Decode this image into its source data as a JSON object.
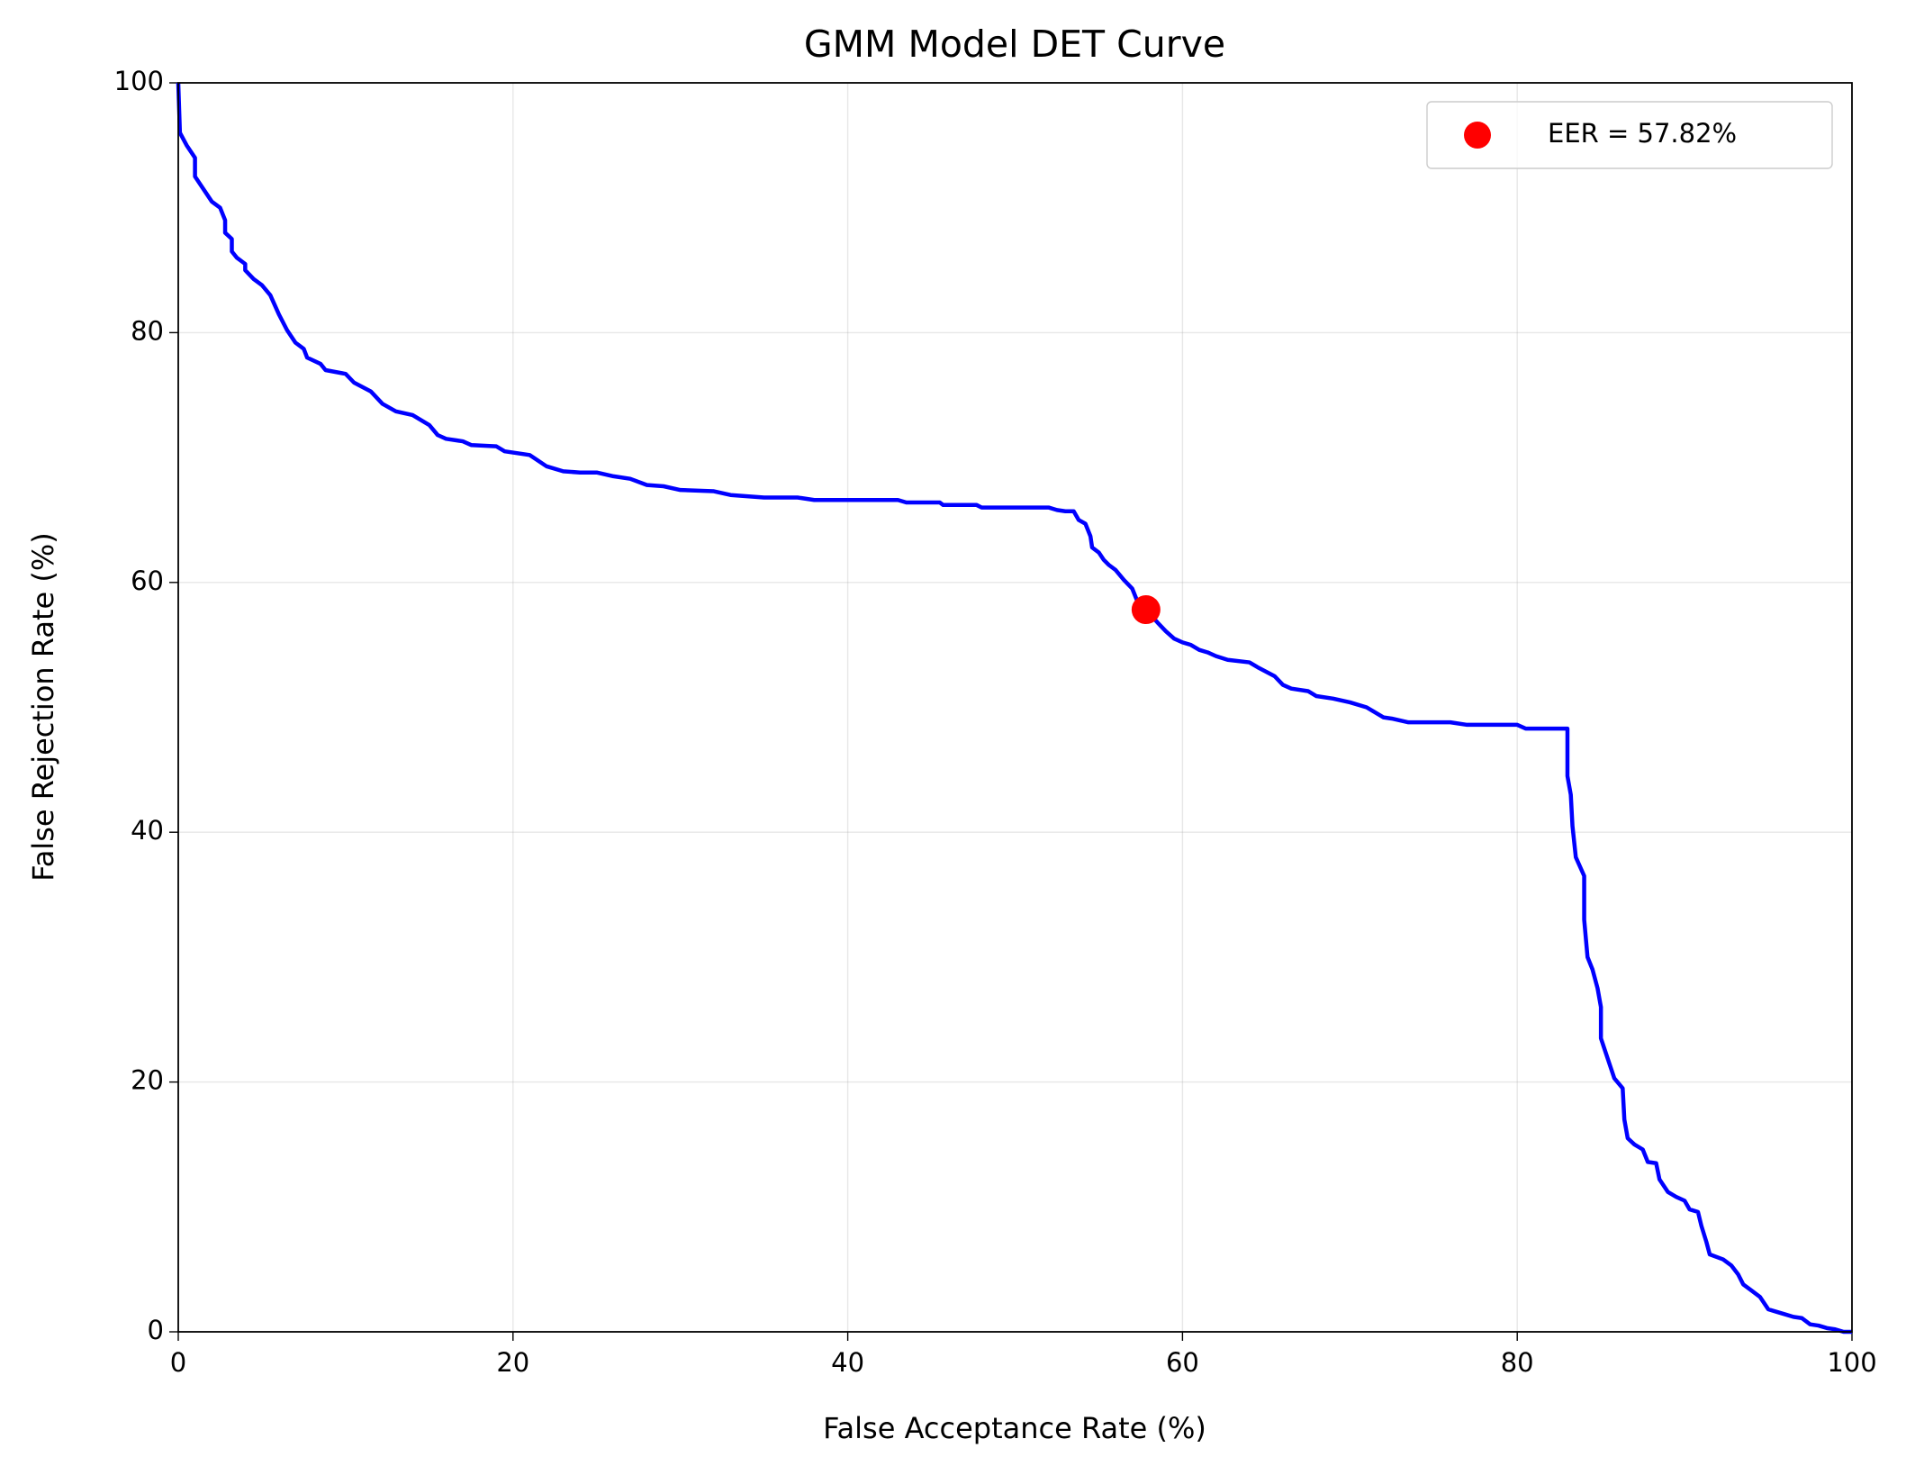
{
  "chart_data": {
    "type": "line",
    "title": "GMM Model DET Curve",
    "x_label": "False Acceptance Rate (%)",
    "y_label": "False Rejection Rate (%)",
    "xlim": [
      0,
      100
    ],
    "ylim": [
      0,
      100
    ],
    "xticks": [
      0,
      20,
      40,
      60,
      80,
      100
    ],
    "yticks": [
      0,
      20,
      40,
      60,
      80,
      100
    ],
    "grid": true,
    "legend_position": "upper right",
    "series": [
      {
        "color": "#0000ff",
        "mode": "line",
        "x": [
          0,
          0.1,
          0.5,
          1,
          1,
          1.5,
          2,
          2.5,
          2.8,
          2.8,
          3.2,
          3.2,
          3.5,
          4,
          4,
          4.5,
          5,
          5.5,
          6,
          6.5,
          7,
          7.5,
          7.7,
          8.5,
          8.8,
          10,
          10.5,
          11.5,
          12.2,
          13,
          14,
          15,
          15.5,
          16,
          17,
          17.5,
          19,
          19.5,
          21,
          22,
          23,
          24,
          25,
          26,
          27,
          28,
          29,
          30,
          32,
          33,
          35,
          37,
          38,
          43,
          43.5,
          45.5,
          45.7,
          47.7,
          48,
          52,
          52.5,
          53,
          53.5,
          53.8,
          54.2,
          54.5,
          54.6,
          55,
          55.3,
          55.6,
          56,
          56.5,
          57,
          57.3,
          57.82,
          58.5,
          59,
          59.5,
          60,
          60.5,
          61,
          61.5,
          62,
          62.7,
          64,
          64.5,
          65.5,
          66,
          66.5,
          67.5,
          68,
          69,
          70,
          71,
          72,
          72.5,
          73.5,
          76,
          77,
          80,
          80.5,
          83,
          83,
          83.2,
          83.3,
          83.5,
          84,
          84,
          84.2,
          84.5,
          84.8,
          85,
          85,
          85.5,
          85.8,
          86.3,
          86.4,
          86.6,
          87,
          87.5,
          87.8,
          88.3,
          88.5,
          89,
          89.5,
          90,
          90.3,
          90.8,
          91,
          91.3,
          91.5,
          92.3,
          92.8,
          93.2,
          93.5,
          94,
          94.5,
          95,
          95.5,
          96,
          96.5,
          97,
          97.5,
          98,
          98.5,
          99,
          99.5,
          100
        ],
        "values": [
          100,
          96,
          95,
          94,
          92.5,
          91.5,
          90.5,
          90,
          89,
          88,
          87.5,
          86.5,
          86,
          85.5,
          85,
          84.3,
          83.8,
          83,
          81.5,
          80.2,
          79.2,
          78.7,
          78,
          77.5,
          77,
          76.7,
          76,
          75.3,
          74.3,
          73.7,
          73.4,
          72.6,
          71.8,
          71.5,
          71.3,
          71,
          70.9,
          70.5,
          70.2,
          69.3,
          68.9,
          68.8,
          68.8,
          68.5,
          68.3,
          67.8,
          67.7,
          67.4,
          67.3,
          67,
          66.8,
          66.8,
          66.6,
          66.6,
          66.4,
          66.4,
          66.2,
          66.2,
          66,
          66,
          65.8,
          65.7,
          65.7,
          65,
          64.7,
          63.7,
          62.8,
          62.4,
          61.8,
          61.4,
          61,
          60.2,
          59.5,
          58.5,
          57.82,
          56.8,
          56.1,
          55.5,
          55.2,
          55,
          54.6,
          54.4,
          54.1,
          53.8,
          53.6,
          53.2,
          52.5,
          51.8,
          51.5,
          51.3,
          50.9,
          50.7,
          50.4,
          50,
          49.2,
          49.1,
          48.8,
          48.8,
          48.6,
          48.6,
          48.3,
          48.3,
          44.5,
          43,
          40.5,
          38,
          36.5,
          33,
          30,
          29,
          27.5,
          26,
          23.5,
          21.5,
          20.3,
          19.5,
          17,
          15.5,
          15,
          14.6,
          13.6,
          13.5,
          12.2,
          11.2,
          10.8,
          10.5,
          9.8,
          9.6,
          8.5,
          7.2,
          6.2,
          5.8,
          5.3,
          4.6,
          3.8,
          3.3,
          2.8,
          1.8,
          1.6,
          1.4,
          1.2,
          1.1,
          0.6,
          0.5,
          0.3,
          0.2,
          0,
          0
        ]
      },
      {
        "name": "EER = 57.82%",
        "color": "#ff0000",
        "mode": "markers",
        "x": [
          57.82
        ],
        "values": [
          57.82
        ]
      }
    ]
  }
}
